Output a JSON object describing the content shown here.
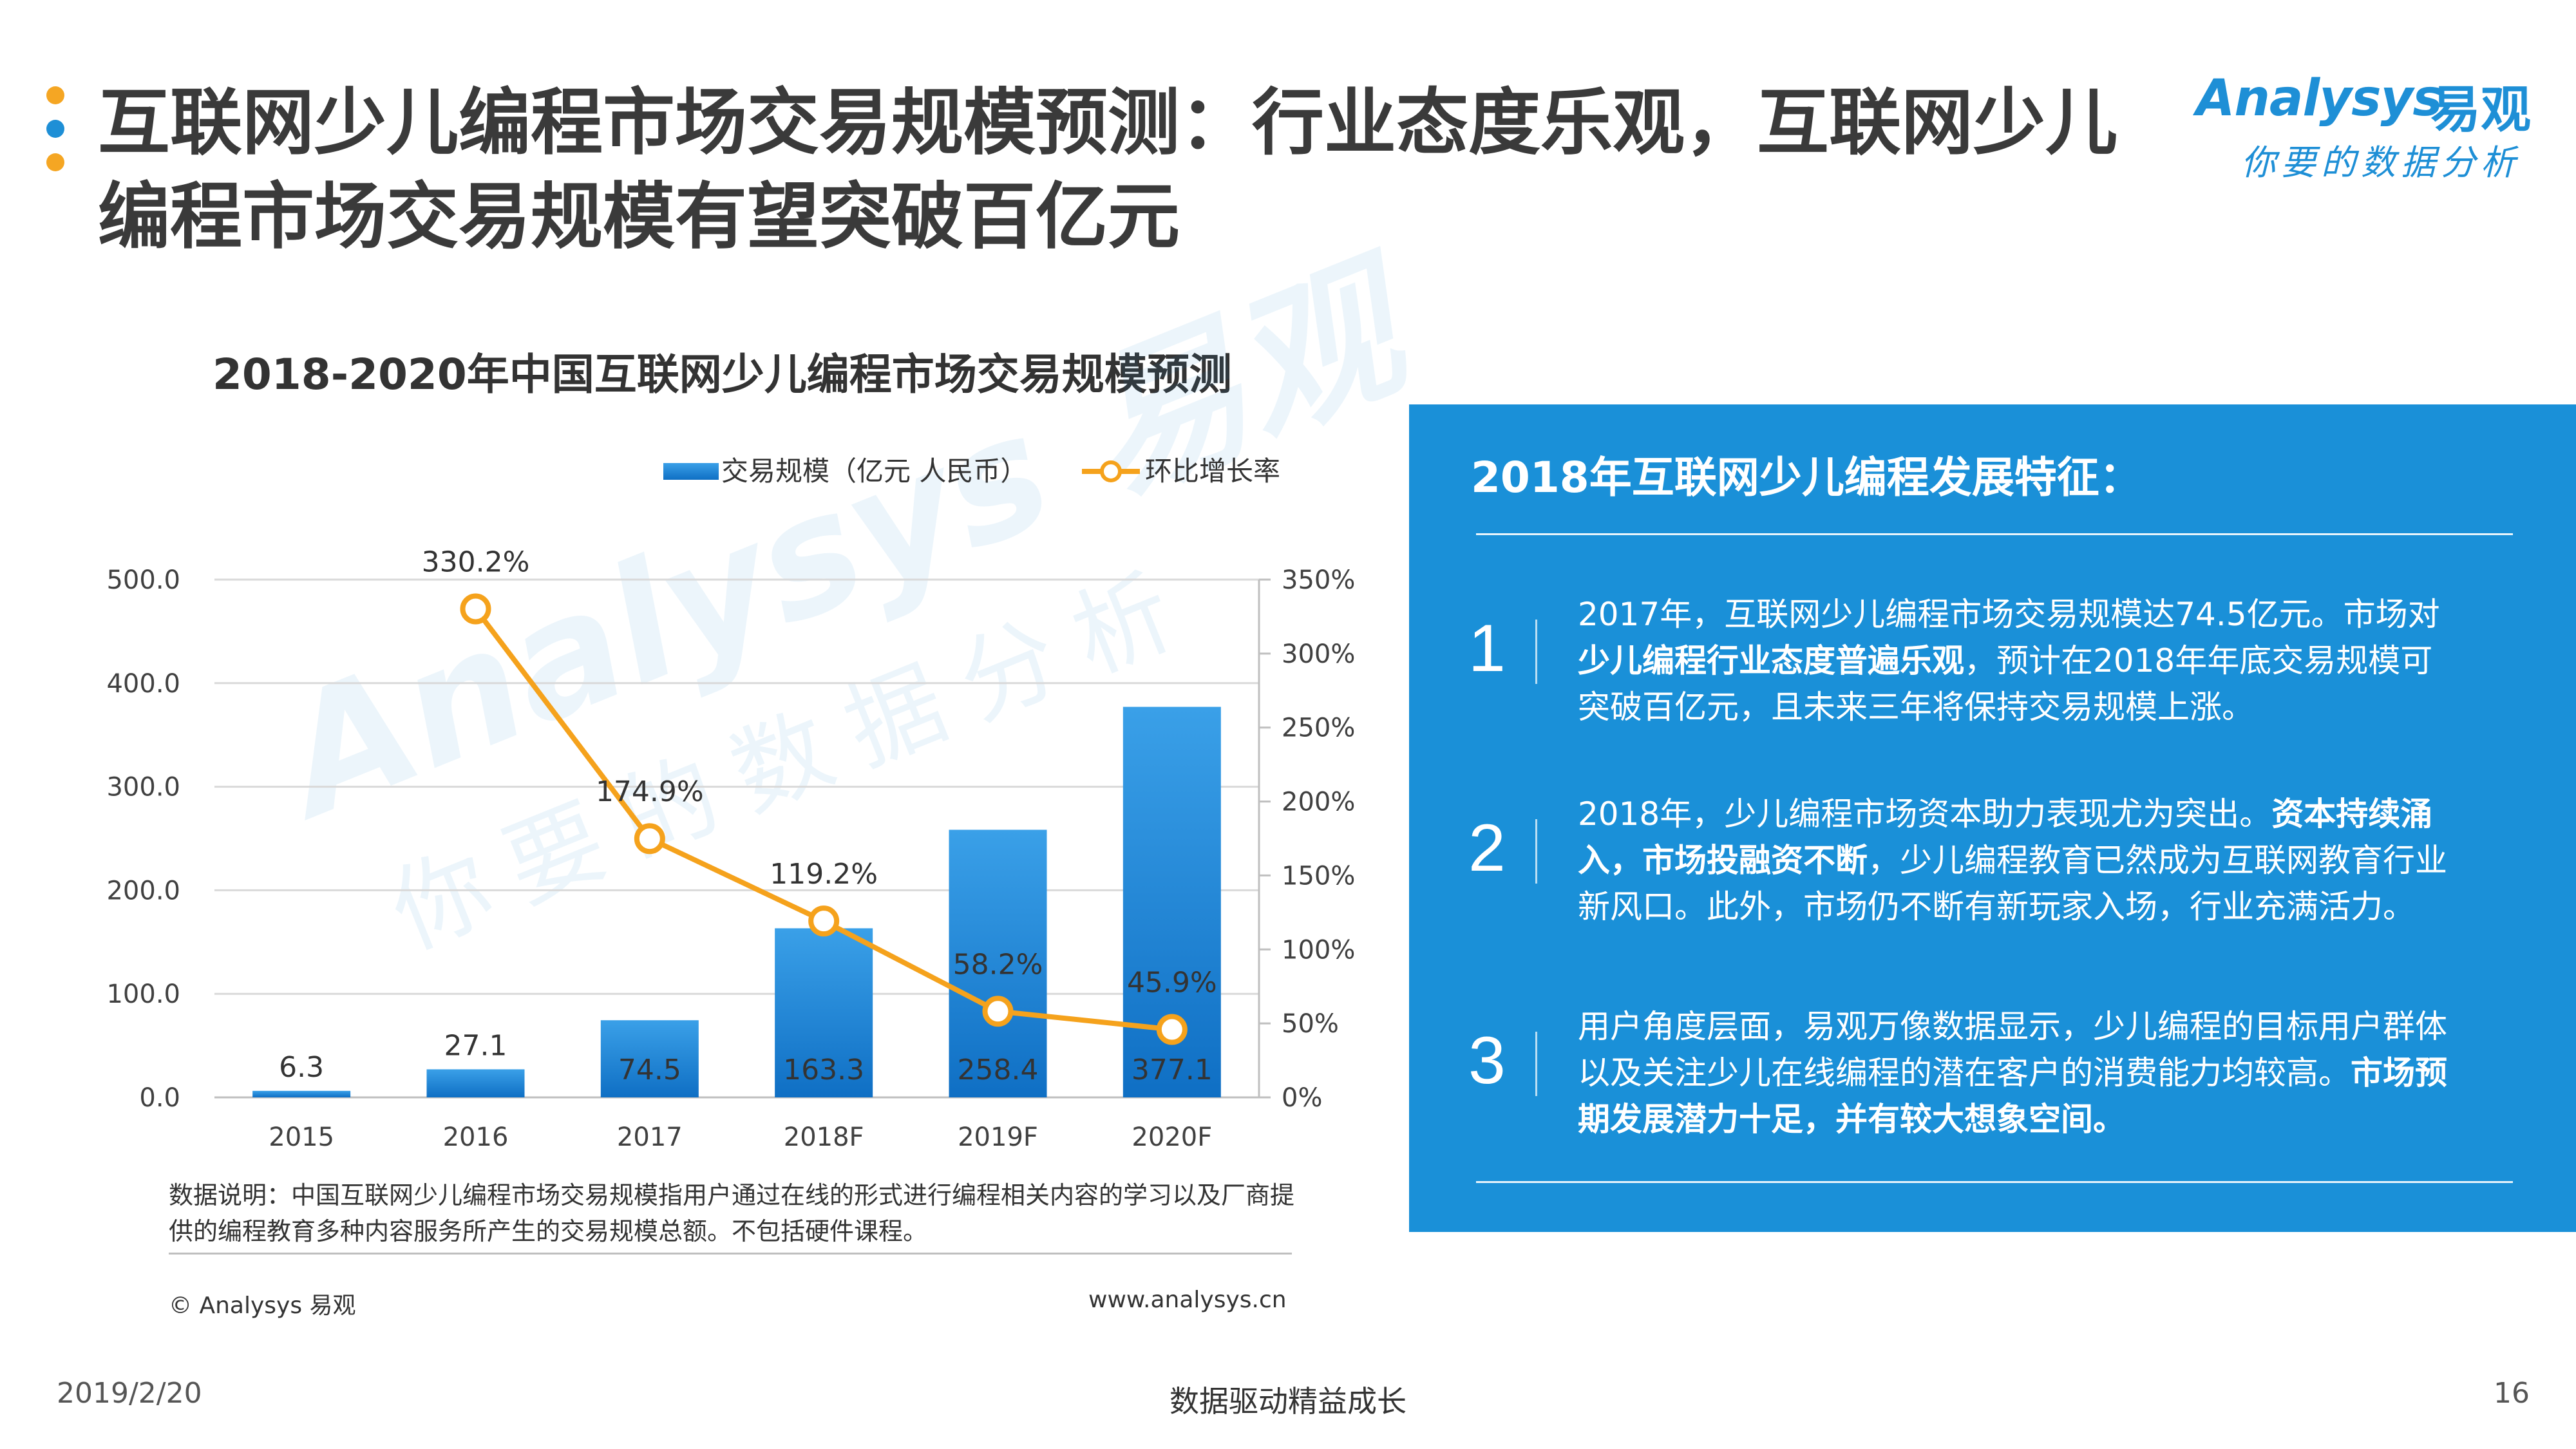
{
  "page": {
    "title": "互联网少儿编程市场交易规模预测：行业态度乐观，互联网少儿\n编程市场交易规模有望突破百亿元",
    "dot_colors": [
      "#f5a623",
      "#1e8fd6",
      "#f5a623"
    ],
    "footer": {
      "date": "2019/2/20",
      "center": "数据驱动精益成长",
      "page_number": "16"
    }
  },
  "logo": {
    "brand": "Analysys",
    "brand_cn": "易观",
    "tagline": "你要的数据分析"
  },
  "watermark": {
    "line1": "Analysys 易观",
    "line2": "你要的数据分析"
  },
  "chart_data": {
    "type": "bar",
    "title": "2018-2020年中国互联网少儿编程市场交易规模预测",
    "categories": [
      "2015",
      "2016",
      "2017",
      "2018F",
      "2019F",
      "2020F"
    ],
    "series": [
      {
        "name": "交易规模（亿元 人民币）",
        "type": "bar",
        "axis": "left",
        "values": [
          6.3,
          27.1,
          74.5,
          163.3,
          258.4,
          377.1
        ],
        "labels": [
          "6.3",
          "27.1",
          "74.5",
          "163.3",
          "258.4",
          "377.1"
        ]
      },
      {
        "name": "环比增长率",
        "type": "line",
        "axis": "right",
        "values": [
          null,
          330.2,
          174.9,
          119.2,
          58.2,
          45.9
        ],
        "labels": [
          "",
          "330.2%",
          "174.9%",
          "119.2%",
          "58.2%",
          "45.9%"
        ]
      }
    ],
    "left_axis": {
      "ylim": [
        0,
        500
      ],
      "ticks": [
        "0.0",
        "100.0",
        "200.0",
        "300.0",
        "400.0",
        "500.0"
      ]
    },
    "right_axis": {
      "ylim": [
        0,
        350
      ],
      "ticks": [
        "0%",
        "50%",
        "100%",
        "150%",
        "200%",
        "250%",
        "300%",
        "350%"
      ]
    },
    "grid": true,
    "legend_position": "top-right",
    "colors": {
      "bar_top": "#3aa0e8",
      "bar_bottom": "#0f6fc4",
      "line": "#f5a21c",
      "marker_fill": "#ffffff",
      "grid": "#d9d9d9"
    }
  },
  "chart_notes": {
    "note": "数据说明：中国互联网少儿编程市场交易规模指用户通过在线的形式进行编程相关内容的学习以及厂商提供的编程教育多种内容服务所产生的交易规模总额。不包括硬件课程。",
    "copyright": "© Analysys 易观",
    "website": "www.analysys.cn"
  },
  "panel": {
    "title": "2018年互联网少儿编程发展特征：",
    "background": "#1a90d8",
    "items": [
      {
        "number": "1",
        "text_parts": [
          {
            "text": "2017年，互联网少儿编程市场交易规模达74.5亿元。市场对",
            "bold": false
          },
          {
            "text": "少儿编程行业态度普遍乐观",
            "bold": true
          },
          {
            "text": "，预计在2018年年底交易规模可突破百亿元，且未来三年将保持交易规模上涨。",
            "bold": false
          }
        ]
      },
      {
        "number": "2",
        "text_parts": [
          {
            "text": "2018年，少儿编程市场资本助力表现尤为突出。",
            "bold": false
          },
          {
            "text": "资本持续涌入，市场投融资不断",
            "bold": true
          },
          {
            "text": "，少儿编程教育已然成为互联网教育行业新风口。此外，市场仍不断有新玩家入场，行业充满活力。",
            "bold": false
          }
        ]
      },
      {
        "number": "3",
        "text_parts": [
          {
            "text": "用户角度层面，易观万像数据显示，少儿编程的目标用户群体以及关注少儿在线编程的潜在客户的消费能力均较高。",
            "bold": false
          },
          {
            "text": "市场预期发展潜力十足，并有较大想象空间。",
            "bold": true
          }
        ]
      }
    ]
  }
}
